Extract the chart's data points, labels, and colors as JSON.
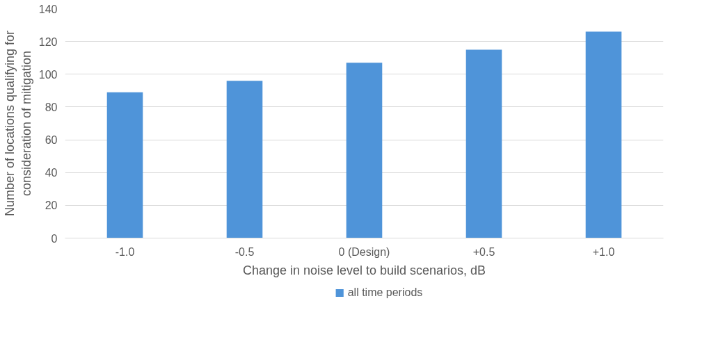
{
  "chart_data": {
    "type": "bar",
    "xlabel": "Change in noise level to build scenarios, dB",
    "ylabel": "Number of locations qualifying for\nconsideration of mitigation",
    "categories": [
      "-1.0",
      "-0.5",
      "0 (Design)",
      "+0.5",
      "+1.0"
    ],
    "series": [
      {
        "name": "all time periods",
        "color": "#4f94d9",
        "values": [
          89,
          96,
          107,
          115,
          126
        ]
      }
    ],
    "ylim": [
      0,
      140
    ],
    "yticks": [
      0,
      20,
      40,
      60,
      80,
      100,
      120,
      140
    ],
    "grid": "y",
    "legend": "bottom"
  }
}
